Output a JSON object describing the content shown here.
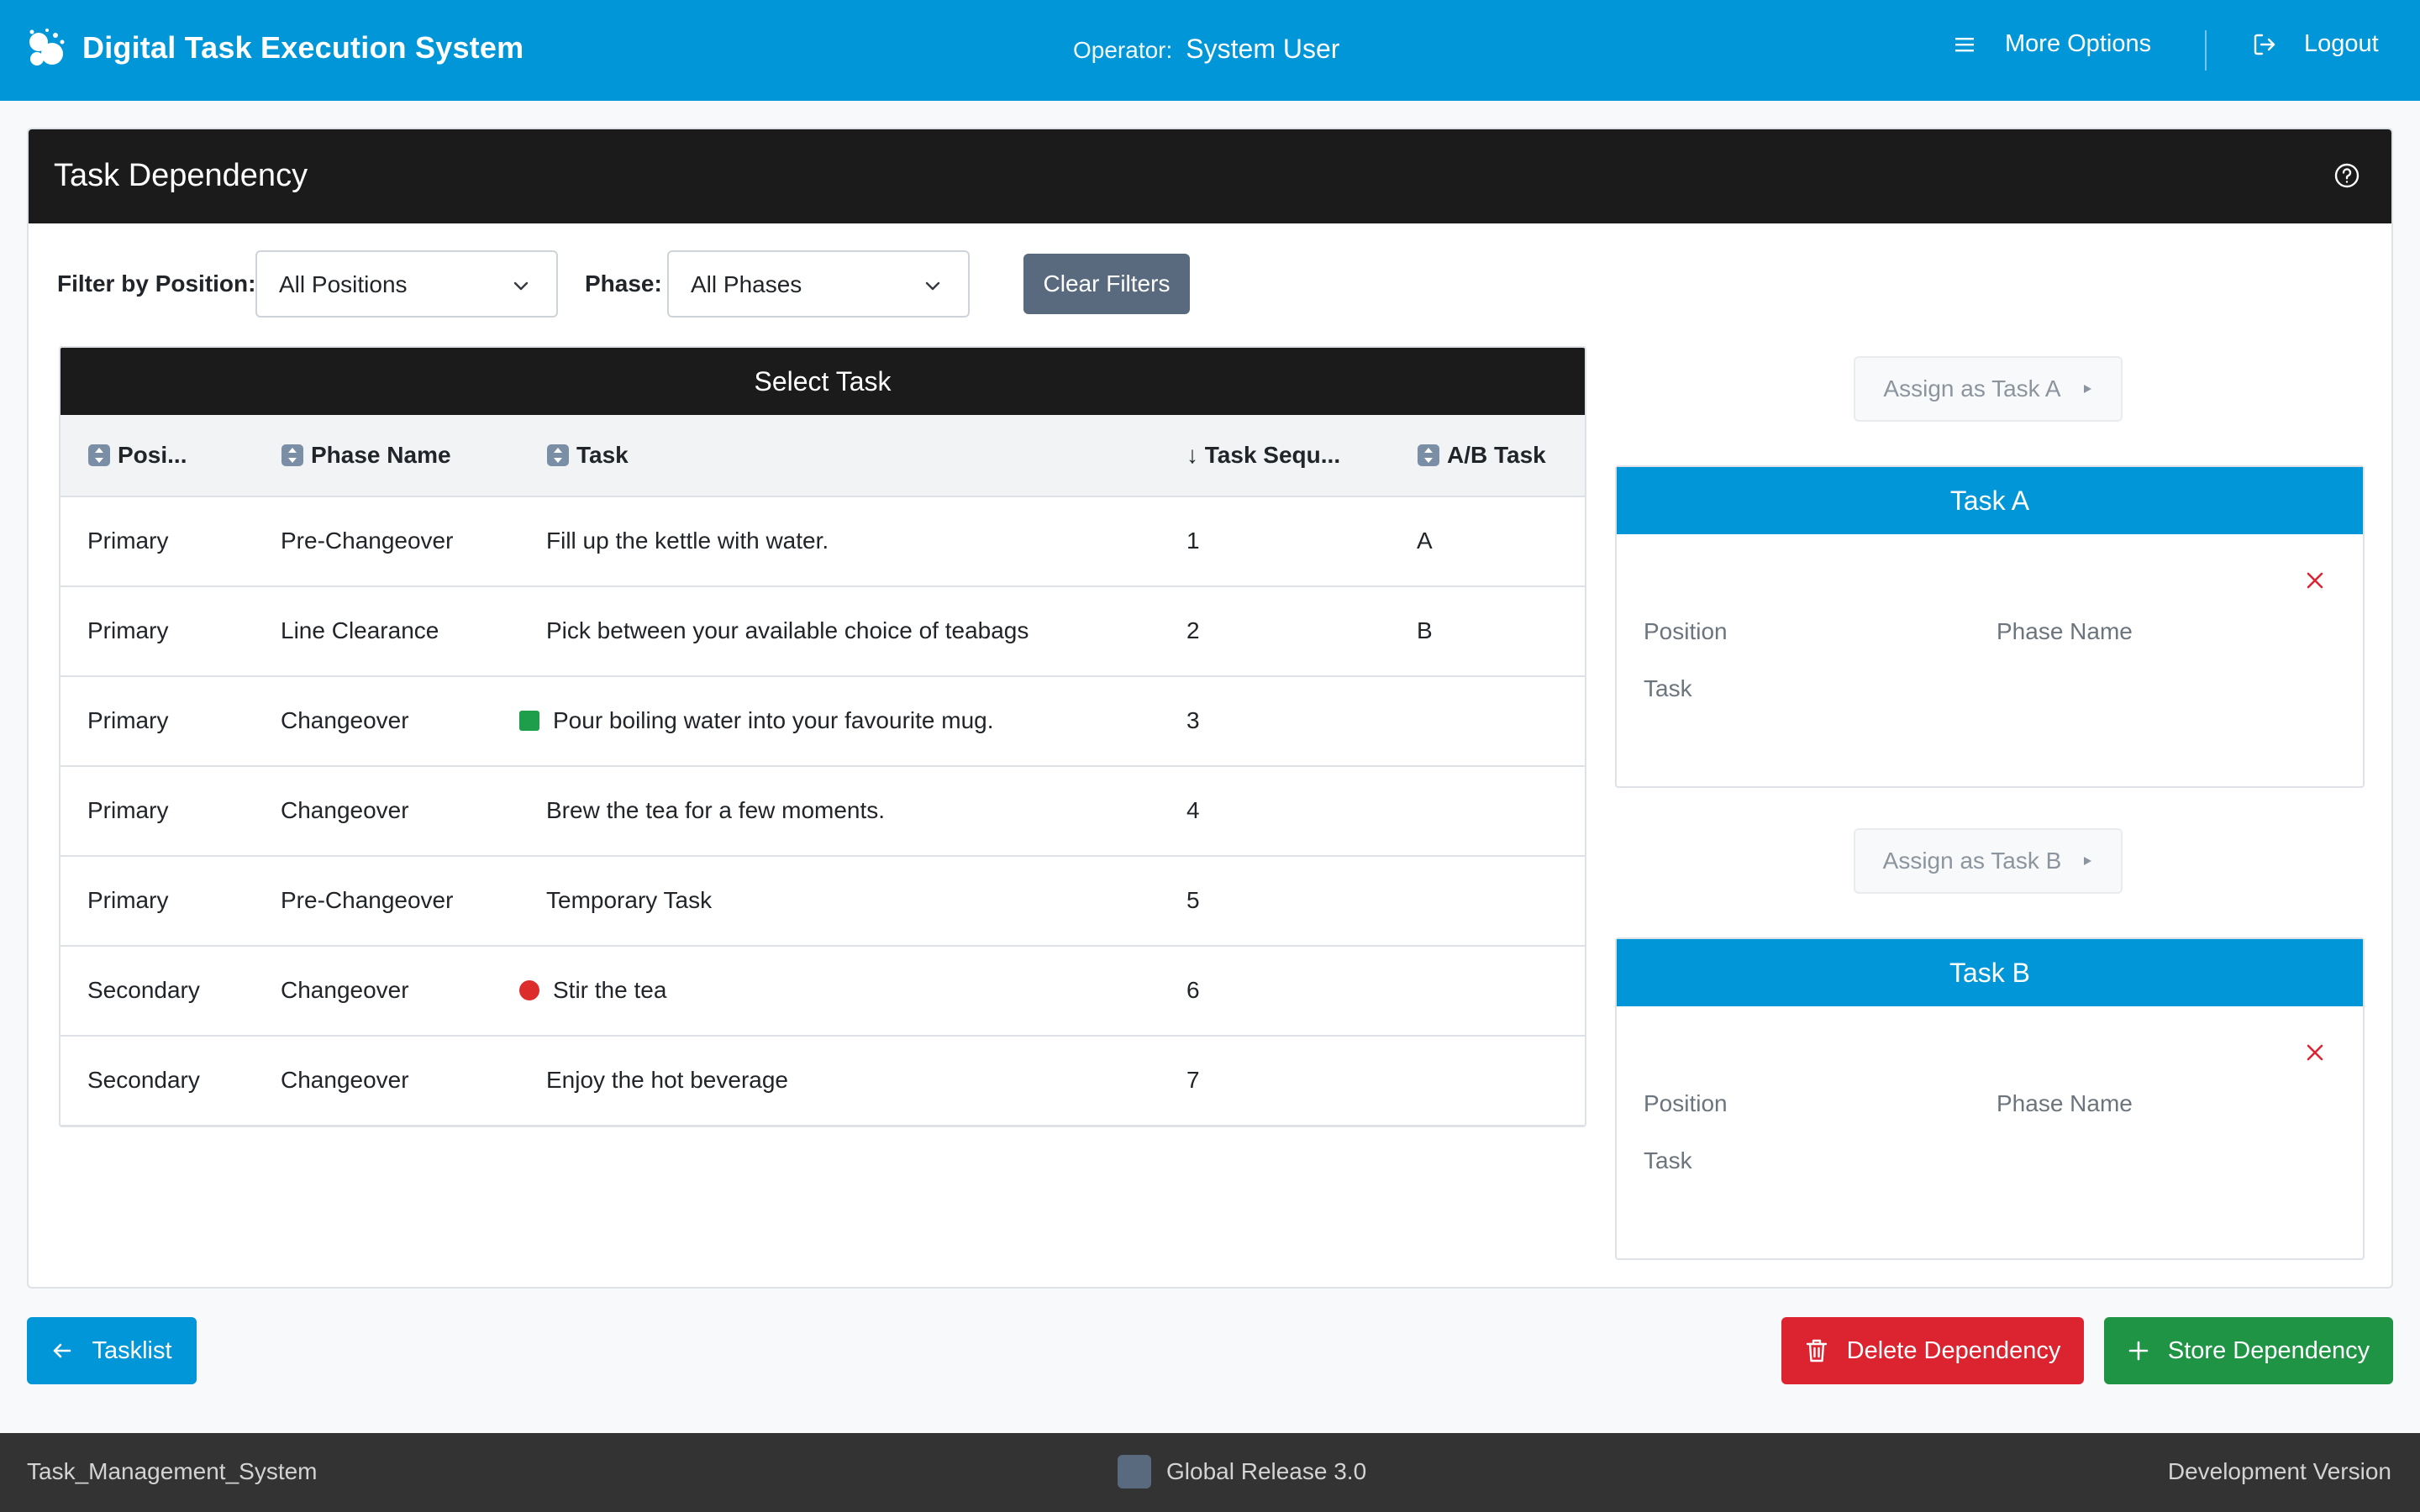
{
  "app": {
    "title": "Digital Task Execution System",
    "operator_label": "Operator:",
    "operator_name": "System User",
    "more_options": "More Options",
    "logout": "Logout"
  },
  "card": {
    "title": "Task Dependency"
  },
  "filters": {
    "position_label": "Filter by Position:",
    "position_value": "All Positions",
    "phase_label": "Phase:",
    "phase_value": "All Phases",
    "clear_label": "Clear Filters"
  },
  "table": {
    "title": "Select Task",
    "columns": [
      "Posi...",
      "Phase Name",
      "Task",
      "↓ Task Sequ...",
      "A/B Task"
    ],
    "rows": [
      {
        "position": "Primary",
        "phase": "Pre-Changeover",
        "task": "Fill up the kettle with water.",
        "seq": "1",
        "ab": "A",
        "marker": ""
      },
      {
        "position": "Primary",
        "phase": "Line Clearance",
        "task": "Pick between your available choice of teabags",
        "seq": "2",
        "ab": "B",
        "marker": ""
      },
      {
        "position": "Primary",
        "phase": "Changeover",
        "task": "Pour boiling water into your favourite mug.",
        "seq": "3",
        "ab": "",
        "marker": "green-square"
      },
      {
        "position": "Primary",
        "phase": "Changeover",
        "task": "Brew the tea for a few moments.",
        "seq": "4",
        "ab": "",
        "marker": ""
      },
      {
        "position": "Primary",
        "phase": "Pre-Changeover",
        "task": "Temporary Task",
        "seq": "5",
        "ab": "",
        "marker": ""
      },
      {
        "position": "Secondary",
        "phase": "Changeover",
        "task": "Stir the tea",
        "seq": "6",
        "ab": "",
        "marker": "red-circle"
      },
      {
        "position": "Secondary",
        "phase": "Changeover",
        "task": "Enjoy the hot beverage",
        "seq": "7",
        "ab": "",
        "marker": ""
      }
    ]
  },
  "task_a": {
    "assign_label": "Assign as Task A",
    "title": "Task A",
    "position_label": "Position",
    "phase_label": "Phase Name",
    "task_label": "Task"
  },
  "task_b": {
    "assign_label": "Assign as Task B",
    "title": "Task B",
    "position_label": "Position",
    "phase_label": "Phase Name",
    "task_label": "Task"
  },
  "actions": {
    "tasklist": "Tasklist",
    "delete": "Delete Dependency",
    "store": "Store Dependency"
  },
  "footer": {
    "left": "Task_Management_System",
    "center": "Global Release 3.0",
    "right": "Development Version"
  },
  "colors": {
    "primary": "#0096d8",
    "dark_header": "#1b1b1b",
    "danger": "#dc2330",
    "success": "#1e9444",
    "secondary": "#5a6a7e"
  }
}
